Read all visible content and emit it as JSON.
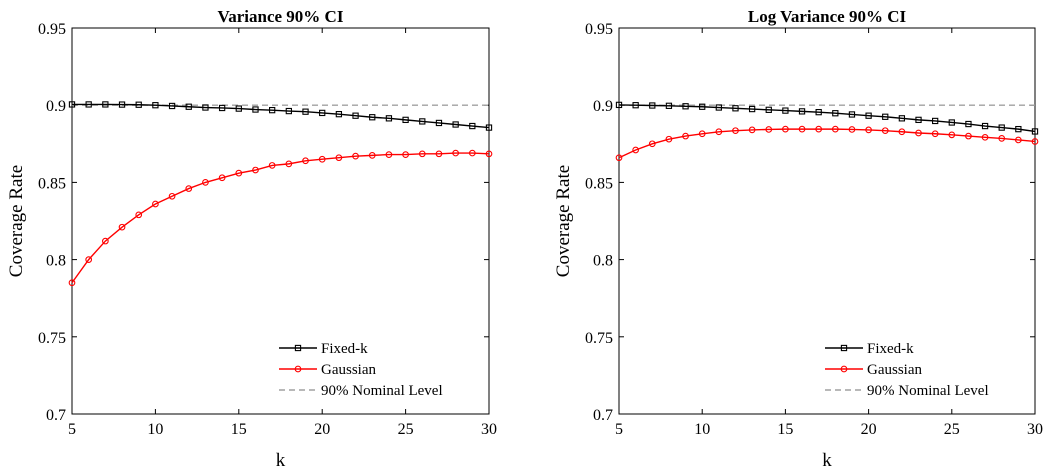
{
  "chart_data": [
    {
      "type": "line",
      "title": "Variance 90% CI",
      "xlabel": "k",
      "ylabel": "Coverage Rate",
      "xlim": [
        5,
        30
      ],
      "ylim": [
        0.7,
        0.95
      ],
      "xticks": [
        "5",
        "10",
        "15",
        "20",
        "25",
        "30"
      ],
      "yticks": [
        "0.7",
        "0.75",
        "0.8",
        "0.85",
        "0.9",
        "0.95"
      ],
      "grid": false,
      "legend_position": "bottom-right",
      "x": [
        5,
        6,
        7,
        8,
        9,
        10,
        11,
        12,
        13,
        14,
        15,
        16,
        17,
        18,
        19,
        20,
        21,
        22,
        23,
        24,
        25,
        26,
        27,
        28,
        29,
        30
      ],
      "series": [
        {
          "name": "Fixed-k",
          "color": "#000000",
          "marker": "square",
          "values": [
            0.9005,
            0.9005,
            0.9005,
            0.9004,
            0.9003,
            0.9,
            0.8995,
            0.899,
            0.8985,
            0.8982,
            0.8978,
            0.8972,
            0.8968,
            0.8962,
            0.8958,
            0.895,
            0.8942,
            0.8932,
            0.8922,
            0.8915,
            0.8905,
            0.8895,
            0.8885,
            0.8875,
            0.8865,
            0.8855
          ]
        },
        {
          "name": "Gaussian",
          "color": "#ff0000",
          "marker": "circle",
          "values": [
            0.785,
            0.8,
            0.812,
            0.821,
            0.829,
            0.836,
            0.841,
            0.846,
            0.85,
            0.853,
            0.856,
            0.858,
            0.861,
            0.862,
            0.864,
            0.865,
            0.866,
            0.867,
            0.8675,
            0.868,
            0.868,
            0.8685,
            0.8685,
            0.869,
            0.869,
            0.8685
          ]
        },
        {
          "name": "90% Nominal Level",
          "color": "#a0a0a0",
          "style": "dashed",
          "values": [
            0.9,
            0.9,
            0.9,
            0.9,
            0.9,
            0.9,
            0.9,
            0.9,
            0.9,
            0.9,
            0.9,
            0.9,
            0.9,
            0.9,
            0.9,
            0.9,
            0.9,
            0.9,
            0.9,
            0.9,
            0.9,
            0.9,
            0.9,
            0.9,
            0.9,
            0.9
          ]
        }
      ]
    },
    {
      "type": "line",
      "title": "Log Variance 90% CI",
      "xlabel": "k",
      "ylabel": "Coverage Rate",
      "xlim": [
        5,
        30
      ],
      "ylim": [
        0.7,
        0.95
      ],
      "xticks": [
        "5",
        "10",
        "15",
        "20",
        "25",
        "30"
      ],
      "yticks": [
        "0.7",
        "0.75",
        "0.8",
        "0.85",
        "0.9",
        "0.95"
      ],
      "grid": false,
      "legend_position": "bottom-right",
      "x": [
        5,
        6,
        7,
        8,
        9,
        10,
        11,
        12,
        13,
        14,
        15,
        16,
        17,
        18,
        19,
        20,
        21,
        22,
        23,
        24,
        25,
        26,
        27,
        28,
        29,
        30
      ],
      "series": [
        {
          "name": "Fixed-k",
          "color": "#000000",
          "marker": "square",
          "values": [
            0.9002,
            0.9,
            0.8998,
            0.8996,
            0.8993,
            0.899,
            0.8985,
            0.898,
            0.8975,
            0.897,
            0.8965,
            0.896,
            0.8955,
            0.8948,
            0.894,
            0.8932,
            0.8925,
            0.8915,
            0.8905,
            0.8898,
            0.8888,
            0.8878,
            0.8865,
            0.8855,
            0.8845,
            0.883
          ]
        },
        {
          "name": "Gaussian",
          "color": "#ff0000",
          "marker": "circle",
          "values": [
            0.866,
            0.871,
            0.875,
            0.878,
            0.88,
            0.8815,
            0.8828,
            0.8835,
            0.884,
            0.8843,
            0.8845,
            0.8845,
            0.8845,
            0.8845,
            0.8843,
            0.884,
            0.8835,
            0.8828,
            0.882,
            0.8815,
            0.8808,
            0.88,
            0.8792,
            0.8785,
            0.8775,
            0.8765
          ]
        },
        {
          "name": "90% Nominal Level",
          "color": "#a0a0a0",
          "style": "dashed",
          "values": [
            0.9,
            0.9,
            0.9,
            0.9,
            0.9,
            0.9,
            0.9,
            0.9,
            0.9,
            0.9,
            0.9,
            0.9,
            0.9,
            0.9,
            0.9,
            0.9,
            0.9,
            0.9,
            0.9,
            0.9,
            0.9,
            0.9,
            0.9,
            0.9,
            0.9,
            0.9
          ]
        }
      ]
    }
  ]
}
